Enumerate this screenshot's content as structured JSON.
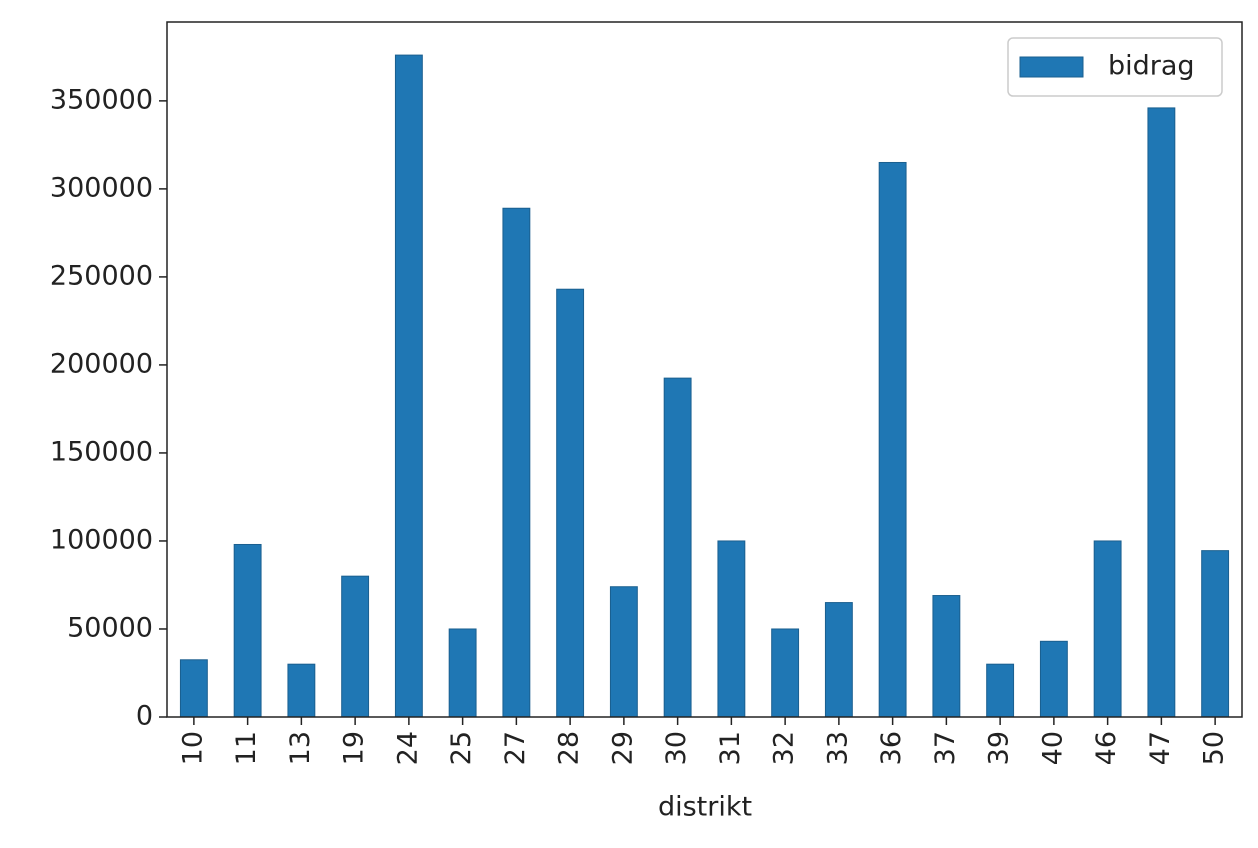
{
  "chart_data": {
    "type": "bar",
    "x_label": "distrikt",
    "categories": [
      "10",
      "11",
      "13",
      "19",
      "24",
      "25",
      "27",
      "28",
      "29",
      "30",
      "31",
      "32",
      "33",
      "36",
      "37",
      "39",
      "40",
      "46",
      "47",
      "50"
    ],
    "series": [
      {
        "name": "bidrag",
        "color": "#1f77b4",
        "values": [
          32500,
          98000,
          30000,
          80000,
          376000,
          50000,
          289000,
          243000,
          74000,
          192500,
          100000,
          50000,
          65000,
          315000,
          69000,
          30000,
          43000,
          100000,
          346000,
          94500
        ]
      }
    ],
    "ylim": [
      0,
      394800
    ],
    "yticks": [
      0,
      50000,
      100000,
      150000,
      200000,
      250000,
      300000,
      350000
    ],
    "legend": "upper right"
  }
}
